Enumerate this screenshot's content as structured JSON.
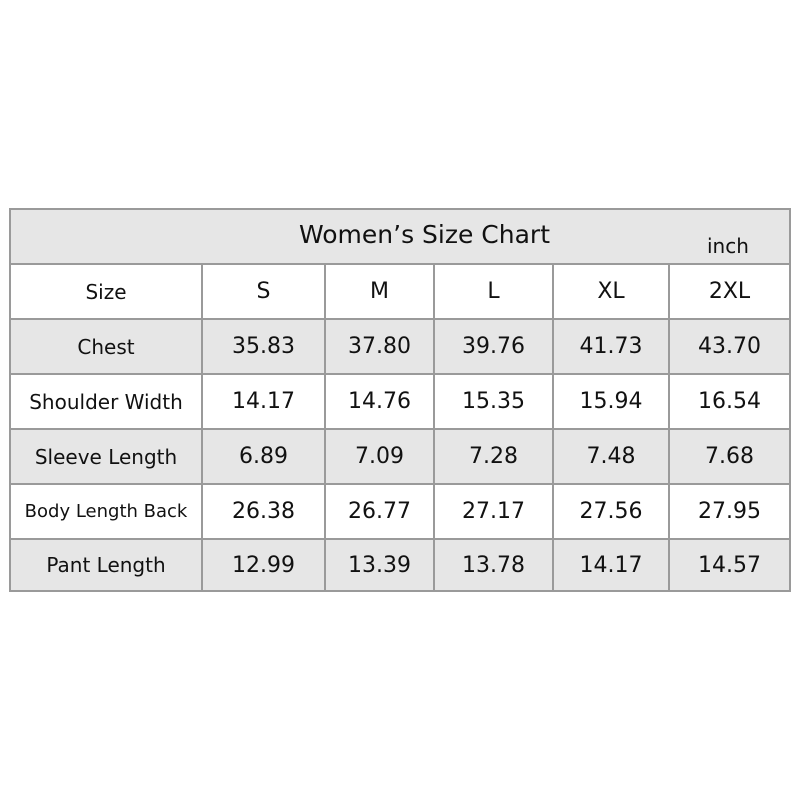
{
  "title": "Women’s Size Chart",
  "unit": "inch",
  "header": {
    "label": "Size",
    "sizes": [
      "S",
      "M",
      "L",
      "XL",
      "2XL"
    ]
  },
  "rows": [
    {
      "label": "Chest",
      "values": [
        "35.83",
        "37.80",
        "39.76",
        "41.73",
        "43.70"
      ]
    },
    {
      "label": "Shoulder Width",
      "values": [
        "14.17",
        "14.76",
        "15.35",
        "15.94",
        "16.54"
      ]
    },
    {
      "label": "Sleeve  Length",
      "values": [
        "6.89",
        "7.09",
        "7.28",
        "7.48",
        "7.68"
      ]
    },
    {
      "label": "Body Length Back",
      "values": [
        "26.38",
        "26.77",
        "27.17",
        "27.56",
        "27.95"
      ]
    },
    {
      "label": "Pant  Length",
      "values": [
        "12.99",
        "13.39",
        "13.78",
        "14.17",
        "14.57"
      ]
    }
  ],
  "colors": {
    "row_gray": "#e6e6e6",
    "border": "#9a9a9a"
  }
}
